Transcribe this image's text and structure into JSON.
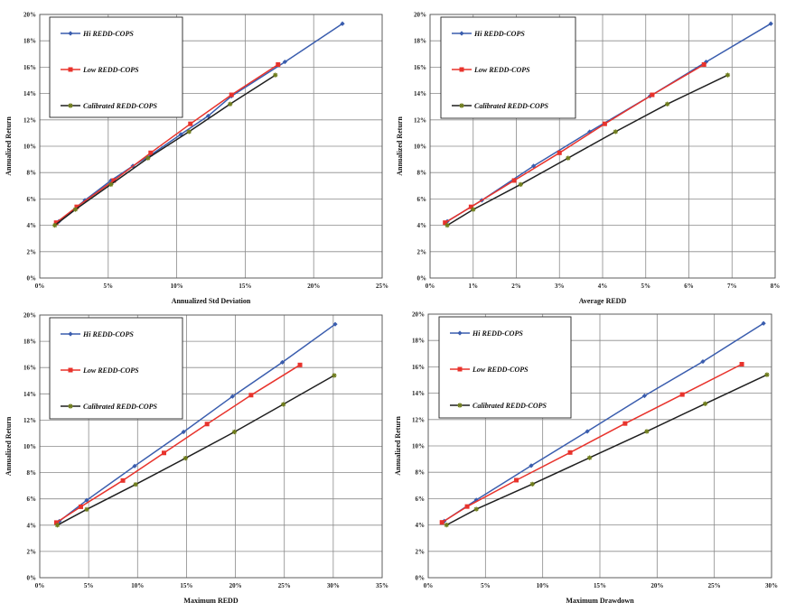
{
  "chart_data": [
    {
      "type": "line",
      "title": "",
      "xlabel": "Annualized Std Deviation",
      "ylabel": "Annualized Return",
      "xlim": [
        0,
        25
      ],
      "ylim": [
        0,
        20
      ],
      "xticks": [
        0,
        5,
        10,
        15,
        20,
        25
      ],
      "yticks": [
        0,
        2,
        4,
        6,
        8,
        10,
        12,
        14,
        16,
        18,
        20
      ],
      "tick_suffix": "%",
      "grid": true,
      "legend_position": "top-left",
      "series": [
        {
          "name": "Hi REDD-COPS",
          "color": "#3a5dae",
          "marker": "diamond",
          "x": [
            1.4,
            3.3,
            5.2,
            6.8,
            8.2,
            10.3,
            12.3,
            14.0,
            17.9,
            22.1
          ],
          "y": [
            4.3,
            5.9,
            7.4,
            8.5,
            9.4,
            10.9,
            12.3,
            13.8,
            16.4,
            19.3
          ]
        },
        {
          "name": "Low REDD-COPS",
          "color": "#e8332c",
          "marker": "square",
          "x": [
            1.2,
            2.7,
            5.4,
            8.1,
            11.0,
            14.0,
            17.4
          ],
          "y": [
            4.2,
            5.4,
            7.4,
            9.5,
            11.7,
            13.9,
            16.2
          ]
        },
        {
          "name": "Calibrated REDD-COPS",
          "color": "#1f1f1f",
          "marker": "star",
          "x": [
            1.1,
            2.6,
            5.2,
            7.9,
            10.9,
            13.9,
            17.2
          ],
          "y": [
            4.0,
            5.2,
            7.1,
            9.1,
            11.1,
            13.2,
            15.4
          ]
        }
      ]
    },
    {
      "type": "line",
      "title": "",
      "xlabel": "Average  REDD",
      "ylabel": "Annualized Return",
      "xlim": [
        0,
        8
      ],
      "ylim": [
        0,
        20
      ],
      "xticks": [
        0,
        1,
        2,
        3,
        4,
        5,
        6,
        7,
        8
      ],
      "yticks": [
        0,
        2,
        4,
        6,
        8,
        10,
        12,
        14,
        16,
        18,
        20
      ],
      "tick_suffix": "%",
      "grid": true,
      "legend_position": "top-left",
      "series": [
        {
          "name": "Hi REDD-COPS",
          "color": "#3a5dae",
          "marker": "diamond",
          "x": [
            0.4,
            1.2,
            2.4,
            3.7,
            5.1,
            6.4,
            7.9
          ],
          "y": [
            4.3,
            5.9,
            8.5,
            11.1,
            13.8,
            16.4,
            19.3
          ]
        },
        {
          "name": "Low REDD-COPS",
          "color": "#e8332c",
          "marker": "square",
          "x": [
            0.35,
            0.95,
            1.95,
            3.0,
            4.05,
            5.15,
            6.35
          ],
          "y": [
            4.2,
            5.4,
            7.4,
            9.5,
            11.7,
            13.9,
            16.2
          ]
        },
        {
          "name": "Calibrated REDD-COPS",
          "color": "#1f1f1f",
          "marker": "star",
          "x": [
            0.4,
            1.0,
            2.1,
            3.2,
            4.3,
            5.5,
            6.9
          ],
          "y": [
            4.0,
            5.2,
            7.1,
            9.1,
            11.1,
            13.2,
            15.4
          ]
        }
      ]
    },
    {
      "type": "line",
      "title": "",
      "xlabel": "Maximum  REDD",
      "ylabel": "Annualized Return",
      "xlim": [
        0,
        35
      ],
      "ylim": [
        0,
        20
      ],
      "xticks": [
        0,
        5,
        10,
        15,
        20,
        25,
        30,
        35
      ],
      "yticks": [
        0,
        2,
        4,
        6,
        8,
        10,
        12,
        14,
        16,
        18,
        20
      ],
      "tick_suffix": "%",
      "grid": true,
      "legend_position": "top-left",
      "series": [
        {
          "name": "Hi REDD-COPS",
          "color": "#3a5dae",
          "marker": "diamond",
          "x": [
            2.0,
            4.8,
            9.7,
            14.7,
            19.7,
            24.8,
            30.2
          ],
          "y": [
            4.3,
            5.9,
            8.5,
            11.1,
            13.8,
            16.4,
            19.3
          ]
        },
        {
          "name": "Low REDD-COPS",
          "color": "#e8332c",
          "marker": "square",
          "x": [
            1.7,
            4.2,
            8.5,
            12.7,
            17.1,
            21.6,
            26.6
          ],
          "y": [
            4.2,
            5.4,
            7.4,
            9.5,
            11.7,
            13.9,
            16.2
          ]
        },
        {
          "name": "Calibrated REDD-COPS",
          "color": "#1f1f1f",
          "marker": "star",
          "x": [
            1.8,
            4.8,
            9.8,
            14.9,
            19.9,
            24.9,
            30.1
          ],
          "y": [
            4.0,
            5.2,
            7.1,
            9.1,
            11.1,
            13.2,
            15.4
          ]
        }
      ]
    },
    {
      "type": "line",
      "title": "",
      "xlabel": "Maximum  Drawdown",
      "ylabel": "Annualized Return",
      "xlim": [
        0,
        30
      ],
      "ylim": [
        0,
        20
      ],
      "xticks": [
        0,
        5,
        10,
        15,
        20,
        25,
        30
      ],
      "yticks": [
        0,
        2,
        4,
        6,
        8,
        10,
        12,
        14,
        16,
        18,
        20
      ],
      "tick_suffix": "%",
      "grid": true,
      "legend_position": "top-left",
      "series": [
        {
          "name": "Hi REDD-COPS",
          "color": "#3a5dae",
          "marker": "diamond",
          "x": [
            1.4,
            4.2,
            9.0,
            13.9,
            18.9,
            24.0,
            29.3
          ],
          "y": [
            4.3,
            5.9,
            8.5,
            11.1,
            13.8,
            16.4,
            19.3
          ]
        },
        {
          "name": "Low REDD-COPS",
          "color": "#e8332c",
          "marker": "square",
          "x": [
            1.2,
            3.4,
            7.7,
            12.4,
            17.2,
            22.2,
            27.4
          ],
          "y": [
            4.2,
            5.4,
            7.4,
            9.5,
            11.7,
            13.9,
            16.2
          ]
        },
        {
          "name": "Calibrated REDD-COPS",
          "color": "#1f1f1f",
          "marker": "star",
          "x": [
            1.6,
            4.2,
            9.1,
            14.1,
            19.1,
            24.2,
            29.6
          ],
          "y": [
            4.0,
            5.2,
            7.1,
            9.1,
            11.1,
            13.2,
            15.4
          ]
        }
      ]
    }
  ]
}
